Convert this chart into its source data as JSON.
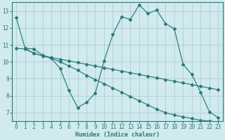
{
  "background_color": "#d0eaee",
  "grid_color": "#b0cdd4",
  "line_color": "#2a7a78",
  "xlabel": "Humidex (Indice chaleur)",
  "xlim": [
    -0.5,
    23.5
  ],
  "ylim": [
    6.5,
    13.5
  ],
  "yticks": [
    7,
    8,
    9,
    10,
    11,
    12,
    13
  ],
  "xticks": [
    0,
    1,
    2,
    3,
    4,
    5,
    6,
    7,
    8,
    9,
    10,
    11,
    12,
    13,
    14,
    15,
    16,
    17,
    18,
    19,
    20,
    21,
    22,
    23
  ],
  "series": [
    {
      "x": [
        0,
        1,
        2,
        3,
        4,
        5,
        6,
        7,
        8,
        9,
        10,
        11,
        12,
        13,
        14,
        15,
        16,
        17,
        18,
        19,
        20,
        21,
        22,
        23
      ],
      "y": [
        12.6,
        10.8,
        10.75,
        10.4,
        10.2,
        9.6,
        8.3,
        7.3,
        7.6,
        8.15,
        10.05,
        11.6,
        12.65,
        12.5,
        13.35,
        12.85,
        13.05,
        12.25,
        11.95,
        9.85,
        9.25,
        8.2,
        7.05,
        6.7
      ]
    },
    {
      "x": [
        0,
        1,
        2,
        3,
        4,
        5,
        6,
        7,
        8,
        9,
        10,
        11,
        12,
        13,
        14,
        15,
        16,
        17,
        18,
        19,
        20,
        21,
        22,
        23
      ],
      "y": [
        10.8,
        10.75,
        10.5,
        10.35,
        10.25,
        10.15,
        10.05,
        9.95,
        9.85,
        9.75,
        9.65,
        9.55,
        9.45,
        9.35,
        9.25,
        9.15,
        9.05,
        8.95,
        8.85,
        8.75,
        8.65,
        8.55,
        8.45,
        8.35
      ]
    },
    {
      "x": [
        1,
        2,
        3,
        4,
        5,
        6,
        7,
        8,
        9,
        10,
        11,
        12,
        13,
        14,
        15,
        16,
        17,
        18,
        19,
        20,
        21,
        22,
        23
      ],
      "y": [
        10.8,
        10.5,
        10.35,
        10.2,
        10.0,
        9.75,
        9.5,
        9.2,
        8.95,
        8.7,
        8.45,
        8.2,
        7.95,
        7.7,
        7.45,
        7.2,
        7.0,
        6.85,
        6.75,
        6.65,
        6.55,
        6.5,
        6.45
      ]
    }
  ]
}
